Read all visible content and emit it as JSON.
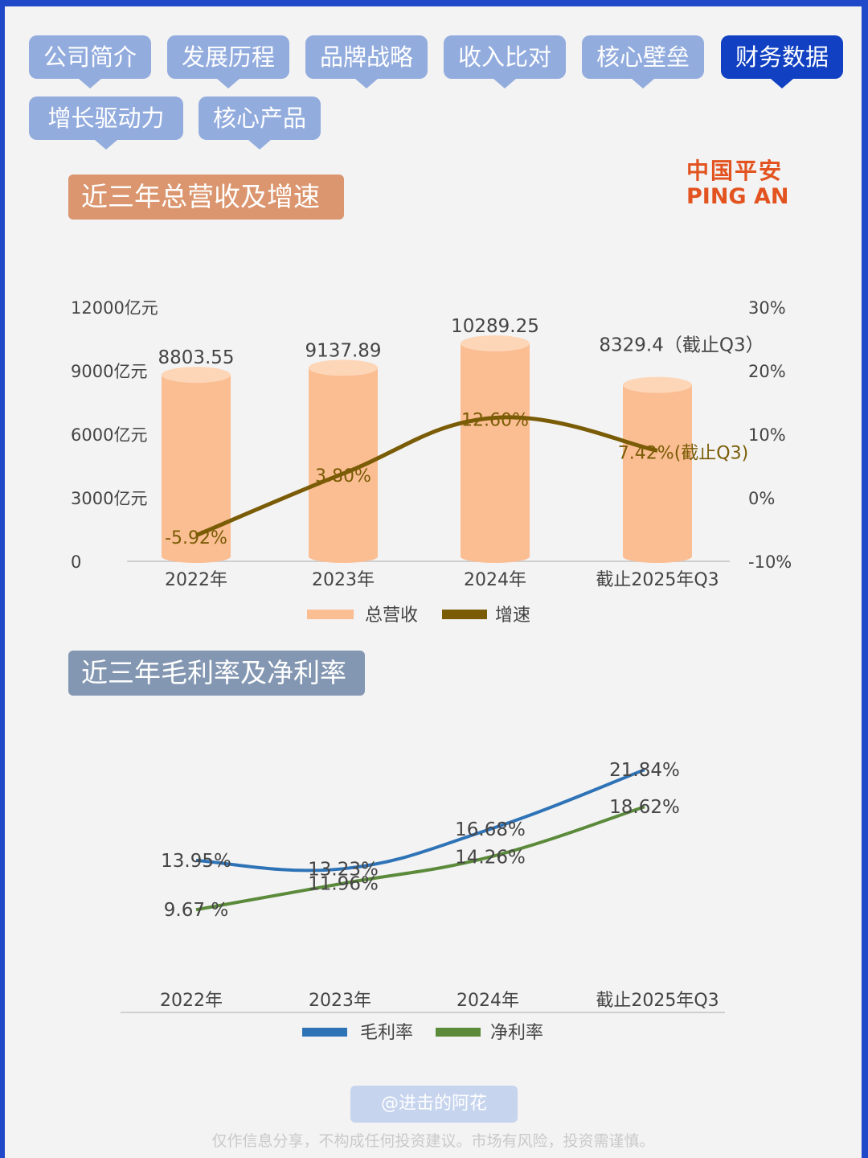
{
  "tabs": [
    {
      "label": "公司简介",
      "active": false
    },
    {
      "label": "发展历程",
      "active": false
    },
    {
      "label": "品牌战略",
      "active": false
    },
    {
      "label": "收入比对",
      "active": false
    },
    {
      "label": "核心壁垒",
      "active": false
    },
    {
      "label": "财务数据",
      "active": true
    },
    {
      "label": "增长驱动力",
      "active": false
    },
    {
      "label": "核心产品",
      "active": false
    }
  ],
  "logo": {
    "cn": "中国平安",
    "en": "PING AN"
  },
  "colors": {
    "tab": "#93acde",
    "tab_active": "#1141c2",
    "bar": "#fbbd92",
    "bar_top": "#fdd6b8",
    "growth_line": "#7a5c06",
    "title1_bg": "#db966f",
    "title2_bg": "#8497b2",
    "gross_line": "#2f73b7",
    "net_line": "#5a8a3a"
  },
  "watermark": "@进击的阿花",
  "disclaimer": "仅作信息分享，不构成任何投资建议。市场有风险，投资需谨慎。",
  "chart_data": [
    {
      "type": "bar",
      "title": "近三年总营收及增速",
      "categories": [
        "2022年",
        "2023年",
        "2024年",
        "截止2025年Q3"
      ],
      "ylim": [
        0,
        12000
      ],
      "y_ticks": [
        "0",
        "3000亿元",
        "6000亿元",
        "9000亿元",
        "12000亿元"
      ],
      "y_tick_values": [
        0,
        3000,
        6000,
        9000,
        12000
      ],
      "y2lim": [
        -10,
        30
      ],
      "y2_ticks": [
        "-10%",
        "0%",
        "10%",
        "20%",
        "30%"
      ],
      "y2_tick_values": [
        -10,
        0,
        10,
        20,
        30
      ],
      "series": [
        {
          "name": "总营收",
          "kind": "bar",
          "axis": "left",
          "values": [
            8803.55,
            9137.89,
            10289.25,
            8329.4
          ],
          "labels": [
            "8803.55",
            "9137.89",
            "10289.25",
            "8329.4（截止Q3）"
          ]
        },
        {
          "name": "增速",
          "kind": "line",
          "axis": "right",
          "values": [
            -5.92,
            3.8,
            12.6,
            7.42
          ],
          "labels": [
            "-5.92%",
            "3.80%",
            "12.60%",
            "7.42%(截止Q3)"
          ]
        }
      ],
      "legend": [
        "总营收",
        "增速"
      ]
    },
    {
      "type": "line",
      "title": "近三年毛利率及净利率",
      "categories": [
        "2022年",
        "2023年",
        "2024年",
        "截止2025年Q3"
      ],
      "ylim": [
        5,
        25
      ],
      "series": [
        {
          "name": "毛利率",
          "values": [
            13.95,
            13.23,
            16.68,
            21.84
          ],
          "labels": [
            "13.95%",
            "13.23%",
            "16.68%",
            "21.84%"
          ]
        },
        {
          "name": "净利率",
          "values": [
            9.67,
            11.96,
            14.26,
            18.62
          ],
          "labels": [
            "9.67 %",
            "11.96%",
            "14.26%",
            "18.62%"
          ]
        }
      ],
      "legend": [
        "毛利率",
        "净利率"
      ]
    }
  ]
}
